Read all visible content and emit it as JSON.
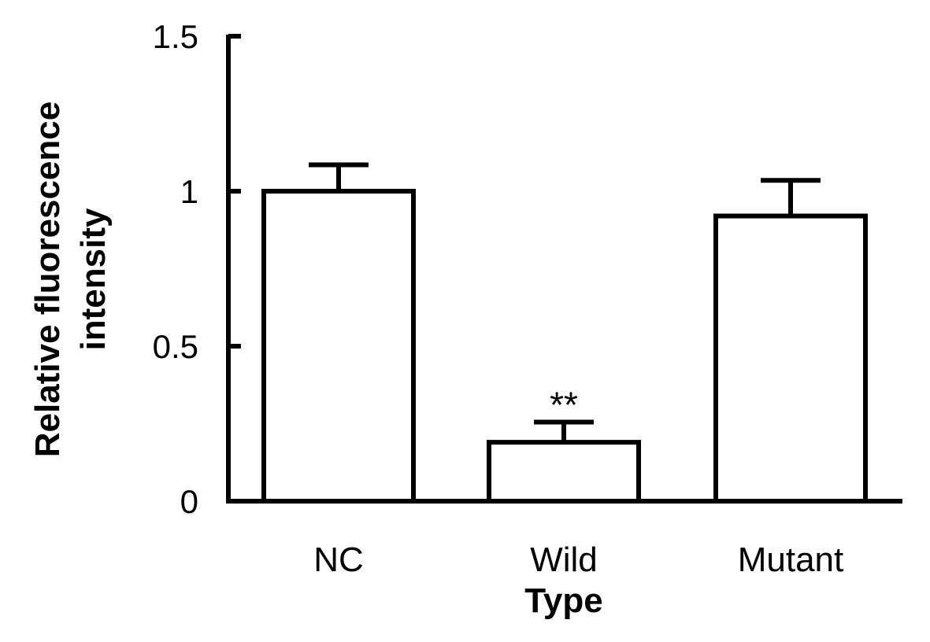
{
  "chart_data": {
    "type": "bar",
    "categories": [
      {
        "lines": [
          "NC"
        ],
        "bold": [
          false
        ]
      },
      {
        "lines": [
          "Wild",
          "Type"
        ],
        "bold": [
          false,
          true
        ]
      },
      {
        "lines": [
          "Mutant"
        ],
        "bold": [
          false
        ]
      }
    ],
    "values": [
      1.0,
      0.19,
      0.92
    ],
    "errors": [
      0.085,
      0.065,
      0.115
    ],
    "annotations": [
      "",
      "**",
      ""
    ],
    "ylabel_lines": [
      "Relative fluorescence",
      "intensity"
    ],
    "xlabel": "",
    "ylim": [
      0,
      1.5
    ],
    "yticks": [
      0,
      0.5,
      1,
      1.5
    ],
    "ytick_labels": [
      "0",
      "0.5",
      "1",
      "1.5"
    ],
    "grid": false,
    "colors": {
      "bar_fill": "#ffffff",
      "stroke": "#000000",
      "text": "#000000"
    }
  }
}
